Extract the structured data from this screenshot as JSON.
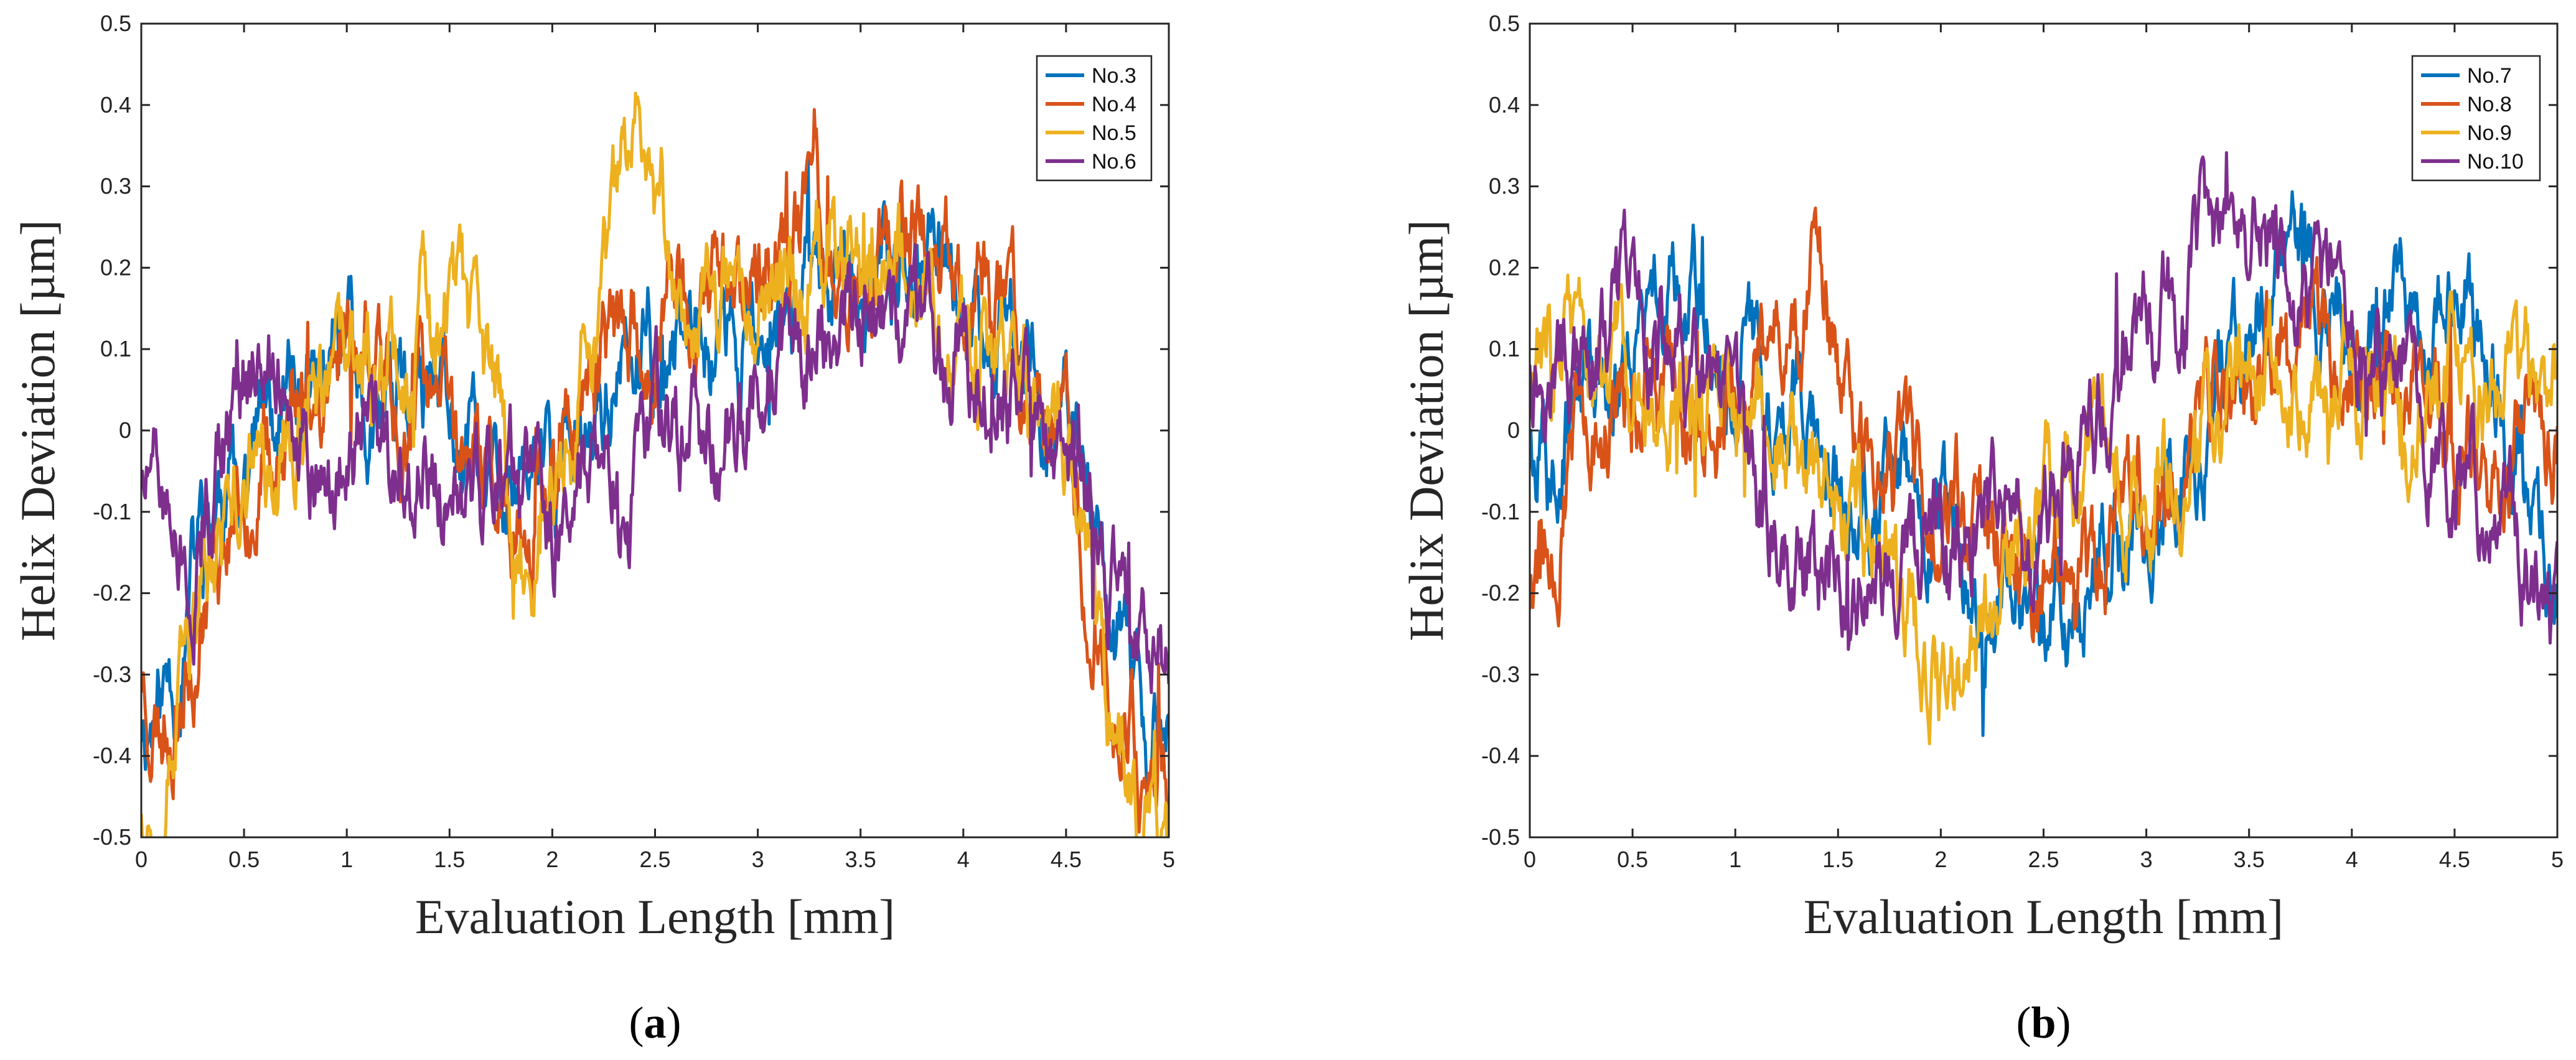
{
  "chart_data": [
    {
      "type": "line",
      "panel_label": "a",
      "caption_open": "(",
      "caption_close": ")",
      "title": "",
      "xlabel": "Evaluation Length [mm]",
      "ylabel": "Helix Deviation [µm]",
      "xlim": [
        0,
        5
      ],
      "ylim": [
        -0.5,
        0.5
      ],
      "xticks": [
        0,
        0.5,
        1,
        1.5,
        2,
        2.5,
        3,
        3.5,
        4,
        4.5,
        5
      ],
      "xtick_labels": [
        "0",
        "0.5",
        "1",
        "1.5",
        "2",
        "2.5",
        "3",
        "3.5",
        "4",
        "4.5",
        "5"
      ],
      "yticks": [
        -0.5,
        -0.4,
        -0.3,
        -0.2,
        -0.1,
        0,
        0.1,
        0.2,
        0.3,
        0.4,
        0.5
      ],
      "ytick_labels": [
        "-0.5",
        "-0.4",
        "-0.3",
        "-0.2",
        "-0.1",
        "0",
        "0.1",
        "0.2",
        "0.3",
        "0.4",
        "0.5"
      ],
      "grid": false,
      "legend_position": "top-right",
      "series": [
        {
          "name": "No.3",
          "color": "#0072BD",
          "seed": 11,
          "x": [
            0,
            0.1,
            0.2,
            0.3,
            0.5,
            0.75,
            1,
            1.25,
            1.5,
            1.75,
            2,
            2.25,
            2.5,
            2.75,
            3,
            3.25,
            3.5,
            3.75,
            4,
            4.25,
            4.5,
            4.65,
            4.8,
            5
          ],
          "y": [
            -0.35,
            -0.33,
            -0.25,
            -0.12,
            -0.02,
            0.05,
            0.08,
            0.02,
            0.0,
            -0.08,
            -0.05,
            0.05,
            0.08,
            0.1,
            0.12,
            0.16,
            0.2,
            0.2,
            0.18,
            0.1,
            0.0,
            -0.15,
            -0.32,
            -0.4
          ]
        },
        {
          "name": "No.4",
          "color": "#D95319",
          "seed": 23,
          "x": [
            0,
            0.1,
            0.2,
            0.3,
            0.5,
            0.75,
            1,
            1.25,
            1.5,
            1.75,
            2,
            2.25,
            2.5,
            2.75,
            3,
            3.25,
            3.5,
            3.75,
            4,
            4.25,
            4.5,
            4.65,
            4.8,
            5
          ],
          "y": [
            -0.3,
            -0.35,
            -0.3,
            -0.2,
            -0.05,
            0.0,
            0.12,
            0.05,
            0.0,
            -0.1,
            -0.05,
            0.1,
            0.12,
            0.15,
            0.2,
            0.25,
            0.2,
            0.25,
            0.18,
            0.1,
            0.0,
            -0.2,
            -0.35,
            -0.45
          ]
        },
        {
          "name": "No.5",
          "color": "#EDB120",
          "seed": 37,
          "x": [
            0,
            0.1,
            0.2,
            0.3,
            0.5,
            0.75,
            1,
            1.25,
            1.5,
            1.75,
            1.85,
            2,
            2.25,
            2.45,
            2.6,
            2.75,
            3,
            3.25,
            3.5,
            3.75,
            4,
            4.25,
            4.5,
            4.65,
            4.8,
            5
          ],
          "y": [
            -0.45,
            -0.45,
            -0.35,
            -0.2,
            -0.05,
            0.0,
            0.05,
            0.1,
            0.15,
            0.0,
            -0.2,
            -0.1,
            0.15,
            0.4,
            0.2,
            0.15,
            0.2,
            0.2,
            0.25,
            0.2,
            0.1,
            0.05,
            0.0,
            -0.25,
            -0.42,
            -0.48
          ]
        },
        {
          "name": "No.6",
          "color": "#7E2F8E",
          "seed": 51,
          "x": [
            0,
            0.1,
            0.2,
            0.3,
            0.5,
            0.6,
            0.75,
            1,
            1.25,
            1.5,
            1.75,
            2,
            2.25,
            2.5,
            2.75,
            3,
            3.25,
            3.5,
            3.75,
            4,
            4.25,
            4.5,
            4.65,
            4.8,
            5
          ],
          "y": [
            -0.05,
            -0.1,
            -0.15,
            -0.1,
            0.05,
            0.12,
            0.0,
            -0.02,
            -0.05,
            -0.05,
            -0.1,
            -0.1,
            -0.05,
            0.0,
            0.0,
            0.05,
            0.08,
            0.15,
            0.12,
            0.1,
            0.05,
            -0.05,
            -0.15,
            -0.25,
            -0.28
          ]
        }
      ]
    },
    {
      "type": "line",
      "panel_label": "b",
      "caption_open": "(",
      "caption_close": ")",
      "title": "",
      "xlabel": "Evaluation Length [mm]",
      "ylabel": "Helix Deviation [µm]",
      "xlim": [
        0,
        5
      ],
      "ylim": [
        -0.5,
        0.5
      ],
      "xticks": [
        0,
        0.5,
        1,
        1.5,
        2,
        2.5,
        3,
        3.5,
        4,
        4.5,
        5
      ],
      "xtick_labels": [
        "0",
        "0.5",
        "1",
        "1.5",
        "2",
        "2.5",
        "3",
        "3.5",
        "4",
        "4.5",
        "5"
      ],
      "yticks": [
        -0.5,
        -0.4,
        -0.3,
        -0.2,
        -0.1,
        0,
        0.1,
        0.2,
        0.3,
        0.4,
        0.5
      ],
      "ytick_labels": [
        "-0.5",
        "-0.4",
        "-0.3",
        "-0.2",
        "-0.1",
        "0",
        "0.1",
        "0.2",
        "0.3",
        "0.4",
        "0.5"
      ],
      "grid": false,
      "legend_position": "top-right",
      "series": [
        {
          "name": "No.7",
          "color": "#0072BD",
          "seed": 67,
          "x": [
            0,
            0.25,
            0.5,
            0.75,
            1,
            1.25,
            1.5,
            1.75,
            2,
            2.25,
            2.5,
            2.75,
            3,
            3.25,
            3.5,
            3.65,
            3.75,
            4,
            4.25,
            4.5,
            4.75,
            5
          ],
          "y": [
            0.0,
            0.05,
            0.1,
            0.15,
            0.1,
            0.05,
            -0.05,
            -0.1,
            -0.15,
            -0.2,
            -0.2,
            -0.15,
            -0.1,
            0.0,
            0.1,
            0.25,
            0.2,
            0.1,
            0.15,
            0.2,
            0.0,
            -0.2
          ]
        },
        {
          "name": "No.8",
          "color": "#D95319",
          "seed": 79,
          "x": [
            0,
            0.25,
            0.5,
            0.75,
            1,
            1.25,
            1.4,
            1.5,
            1.75,
            2,
            2.25,
            2.5,
            2.75,
            3,
            3.25,
            3.5,
            3.75,
            4,
            4.25,
            4.5,
            4.75,
            5
          ],
          "y": [
            -0.2,
            0.0,
            0.05,
            0.0,
            0.05,
            0.1,
            0.18,
            0.05,
            -0.05,
            -0.1,
            -0.15,
            -0.2,
            -0.15,
            -0.1,
            0.0,
            0.05,
            0.15,
            0.1,
            0.05,
            0.0,
            -0.05,
            0.0
          ]
        },
        {
          "name": "No.9",
          "color": "#EDB120",
          "seed": 83,
          "x": [
            0,
            0.15,
            0.25,
            0.5,
            0.75,
            1,
            1.25,
            1.5,
            1.75,
            1.95,
            2.1,
            2.25,
            2.5,
            2.75,
            3,
            3.25,
            3.5,
            3.75,
            4,
            4.25,
            4.5,
            4.75,
            5
          ],
          "y": [
            0.05,
            0.15,
            0.1,
            0.08,
            0.05,
            0.05,
            0.0,
            -0.1,
            -0.15,
            -0.3,
            -0.35,
            -0.2,
            -0.1,
            -0.05,
            -0.05,
            0.0,
            0.05,
            0.1,
            0.1,
            0.0,
            0.1,
            0.05,
            0.05
          ]
        },
        {
          "name": "No.10",
          "color": "#7E2F8E",
          "seed": 97,
          "x": [
            0,
            0.25,
            0.5,
            0.75,
            1,
            1.25,
            1.5,
            1.75,
            2,
            2.25,
            2.5,
            2.75,
            3,
            3.25,
            3.5,
            3.75,
            4,
            4.25,
            4.5,
            4.75,
            5
          ],
          "y": [
            0.1,
            0.05,
            0.15,
            0.05,
            -0.05,
            -0.15,
            -0.15,
            -0.2,
            -0.15,
            -0.15,
            -0.1,
            0.0,
            0.1,
            0.2,
            0.25,
            0.15,
            0.1,
            0.05,
            -0.05,
            -0.1,
            -0.25
          ]
        }
      ]
    }
  ]
}
